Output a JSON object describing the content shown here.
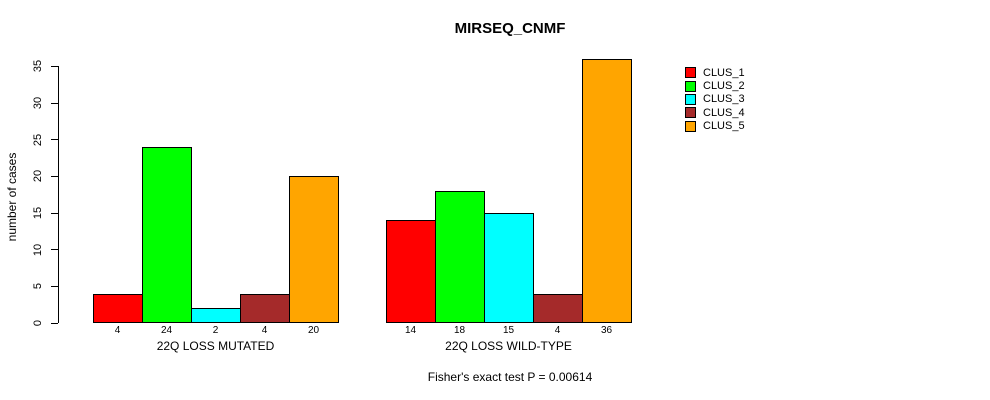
{
  "chart_data": {
    "type": "bar",
    "title": "MIRSEQ_CNMF",
    "ylabel": "number of cases",
    "xlabel": "",
    "ylim": [
      0,
      35
    ],
    "yticks": [
      0,
      5,
      10,
      15,
      20,
      25,
      30,
      35
    ],
    "grid": false,
    "legend_position": "outside-top-right",
    "bar_value_labels": true,
    "categories": [
      "22Q LOSS MUTATED",
      "22Q LOSS WILD-TYPE"
    ],
    "series": [
      {
        "name": "CLUS_1",
        "color": "#FF0000",
        "values": [
          4,
          14
        ]
      },
      {
        "name": "CLUS_2",
        "color": "#00FF00",
        "values": [
          24,
          18
        ]
      },
      {
        "name": "CLUS_3",
        "color": "#00FFFF",
        "values": [
          2,
          15
        ]
      },
      {
        "name": "CLUS_4",
        "color": "#A52A2A",
        "values": [
          4,
          4
        ]
      },
      {
        "name": "CLUS_5",
        "color": "#FFA500",
        "values": [
          20,
          36
        ]
      }
    ],
    "annotation": "Fisher's exact test P = 0.00614"
  }
}
